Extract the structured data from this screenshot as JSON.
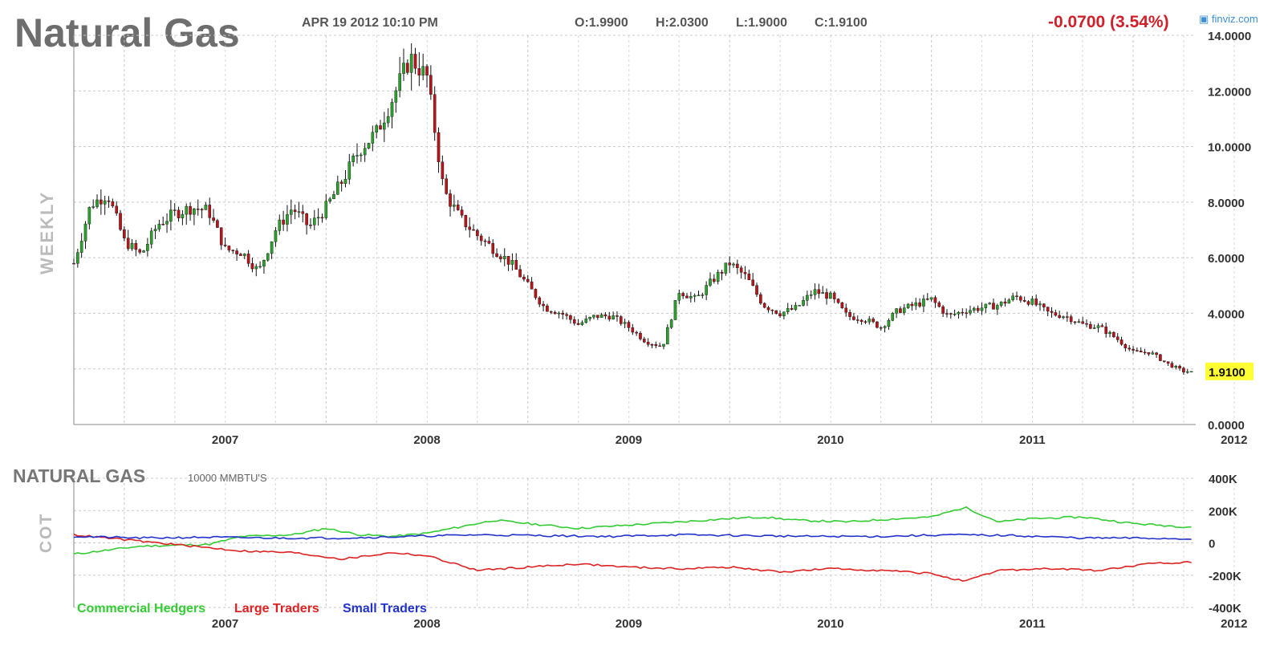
{
  "header": {
    "title": "Natural Gas",
    "datetime": "APR 19 2012 10:10 PM",
    "open": "O:1.9900",
    "high": "H:2.0300",
    "low": "L:1.9000",
    "close": "C:1.9100",
    "change": "-0.0700 (3.54%)",
    "brand": "finviz.com"
  },
  "colors": {
    "up_candle": "#2ca02c",
    "down_candle": "#b8141a",
    "candle_outline": "#000000",
    "grid": "#c8c8c8",
    "last_price_badge": "#ffff33",
    "change_text": "#d0202a",
    "commercial": "#33cc33",
    "large": "#dd2222",
    "small": "#2233cc"
  },
  "chart_data": [
    {
      "type": "candlestick",
      "timeframe_label": "WEEKLY",
      "x_tick_labels": [
        "2007",
        "2008",
        "2009",
        "2010",
        "2011",
        "2012"
      ],
      "y_tick_labels": [
        "0.0000",
        "2.0000",
        "4.0000",
        "6.0000",
        "8.0000",
        "10.0000",
        "12.0000",
        "14.0000"
      ],
      "ylim": [
        0,
        14
      ],
      "x_range": [
        "2006-10",
        "2012-04"
      ],
      "last_price": "1.9100",
      "grid": true,
      "close_path": [
        [
          "2006-10",
          5.8
        ],
        [
          "2006-11",
          7.9
        ],
        [
          "2006-12",
          8.3
        ],
        [
          "2007-01",
          6.6
        ],
        [
          "2007-02",
          6.1
        ],
        [
          "2007-03",
          7.2
        ],
        [
          "2007-04",
          7.6
        ],
        [
          "2007-05",
          7.8
        ],
        [
          "2007-06",
          7.7
        ],
        [
          "2007-07",
          6.3
        ],
        [
          "2007-08",
          6.2
        ],
        [
          "2007-09",
          5.5
        ],
        [
          "2007-10",
          7.0
        ],
        [
          "2007-11",
          7.8
        ],
        [
          "2007-12",
          7.1
        ],
        [
          "2008-01",
          7.8
        ],
        [
          "2008-02",
          8.8
        ],
        [
          "2008-03",
          9.9
        ],
        [
          "2008-04",
          10.5
        ],
        [
          "2008-05",
          11.8
        ],
        [
          "2008-06",
          13.2
        ],
        [
          "2008-07",
          12.5
        ],
        [
          "2008-08",
          8.4
        ],
        [
          "2008-09",
          7.4
        ],
        [
          "2008-10",
          6.8
        ],
        [
          "2008-11",
          6.3
        ],
        [
          "2008-12",
          5.8
        ],
        [
          "2009-01",
          5.0
        ],
        [
          "2009-02",
          4.2
        ],
        [
          "2009-03",
          4.0
        ],
        [
          "2009-04",
          3.6
        ],
        [
          "2009-05",
          3.9
        ],
        [
          "2009-06",
          3.9
        ],
        [
          "2009-07",
          3.5
        ],
        [
          "2009-08",
          3.0
        ],
        [
          "2009-09",
          2.8
        ],
        [
          "2009-10",
          4.8
        ],
        [
          "2009-11",
          4.5
        ],
        [
          "2009-12",
          5.2
        ],
        [
          "2010-01",
          5.8
        ],
        [
          "2010-02",
          5.3
        ],
        [
          "2010-03",
          4.3
        ],
        [
          "2010-04",
          4.0
        ],
        [
          "2010-05",
          4.2
        ],
        [
          "2010-06",
          4.8
        ],
        [
          "2010-07",
          4.6
        ],
        [
          "2010-08",
          3.9
        ],
        [
          "2010-09",
          3.8
        ],
        [
          "2010-10",
          3.5
        ],
        [
          "2010-11",
          4.1
        ],
        [
          "2010-12",
          4.3
        ],
        [
          "2011-01",
          4.5
        ],
        [
          "2011-02",
          3.9
        ],
        [
          "2011-03",
          4.1
        ],
        [
          "2011-04",
          4.2
        ],
        [
          "2011-05",
          4.3
        ],
        [
          "2011-06",
          4.6
        ],
        [
          "2011-07",
          4.4
        ],
        [
          "2011-08",
          4.0
        ],
        [
          "2011-09",
          3.9
        ],
        [
          "2011-10",
          3.6
        ],
        [
          "2011-11",
          3.5
        ],
        [
          "2011-12",
          3.1
        ],
        [
          "2012-01",
          2.6
        ],
        [
          "2012-02",
          2.6
        ],
        [
          "2012-03",
          2.2
        ],
        [
          "2012-04",
          1.91
        ]
      ]
    },
    {
      "type": "line",
      "title": "NATURAL GAS",
      "units_label": "10000 MMBTU'S",
      "side_label": "COT",
      "x_tick_labels": [
        "2007",
        "2008",
        "2009",
        "2010",
        "2011",
        "2012"
      ],
      "y_tick_labels": [
        "-400K",
        "-200K",
        "0",
        "200K",
        "400K"
      ],
      "ylim": [
        -400,
        400
      ],
      "x_range": [
        "2006-10",
        "2012-04"
      ],
      "grid": true,
      "series": [
        {
          "name": "Commercial Hedgers",
          "color": "#33cc33",
          "points": [
            [
              "2006-10",
              -70
            ],
            [
              "2007-02",
              -20
            ],
            [
              "2007-06",
              -10
            ],
            [
              "2007-08",
              40
            ],
            [
              "2007-11",
              50
            ],
            [
              "2008-01",
              90
            ],
            [
              "2008-03",
              50
            ],
            [
              "2008-05",
              40
            ],
            [
              "2008-07",
              60
            ],
            [
              "2008-09",
              100
            ],
            [
              "2008-11",
              140
            ],
            [
              "2009-01",
              120
            ],
            [
              "2009-04",
              90
            ],
            [
              "2009-07",
              110
            ],
            [
              "2009-10",
              130
            ],
            [
              "2010-01",
              150
            ],
            [
              "2010-03",
              160
            ],
            [
              "2010-05",
              140
            ],
            [
              "2010-08",
              130
            ],
            [
              "2010-11",
              150
            ],
            [
              "2011-01",
              160
            ],
            [
              "2011-03",
              220
            ],
            [
              "2011-05",
              130
            ],
            [
              "2011-07",
              150
            ],
            [
              "2011-10",
              160
            ],
            [
              "2012-01",
              120
            ],
            [
              "2012-04",
              100
            ]
          ]
        },
        {
          "name": "Large Traders",
          "color": "#dd2222",
          "points": [
            [
              "2006-10",
              50
            ],
            [
              "2007-01",
              20
            ],
            [
              "2007-04",
              -10
            ],
            [
              "2007-08",
              -50
            ],
            [
              "2007-11",
              -60
            ],
            [
              "2008-02",
              -100
            ],
            [
              "2008-05",
              -60
            ],
            [
              "2008-07",
              -80
            ],
            [
              "2008-10",
              -170
            ],
            [
              "2009-01",
              -150
            ],
            [
              "2009-04",
              -130
            ],
            [
              "2009-07",
              -150
            ],
            [
              "2009-10",
              -160
            ],
            [
              "2010-01",
              -150
            ],
            [
              "2010-04",
              -180
            ],
            [
              "2010-07",
              -160
            ],
            [
              "2010-10",
              -170
            ],
            [
              "2011-01",
              -190
            ],
            [
              "2011-03",
              -240
            ],
            [
              "2011-05",
              -170
            ],
            [
              "2011-08",
              -160
            ],
            [
              "2011-11",
              -170
            ],
            [
              "2012-02",
              -130
            ],
            [
              "2012-04",
              -120
            ]
          ]
        },
        {
          "name": "Small Traders",
          "color": "#2233cc",
          "points": [
            [
              "2006-10",
              40
            ],
            [
              "2007-02",
              30
            ],
            [
              "2007-06",
              35
            ],
            [
              "2007-10",
              30
            ],
            [
              "2008-02",
              30
            ],
            [
              "2008-06",
              40
            ],
            [
              "2008-10",
              50
            ],
            [
              "2009-02",
              45
            ],
            [
              "2009-06",
              40
            ],
            [
              "2009-10",
              50
            ],
            [
              "2010-02",
              45
            ],
            [
              "2010-06",
              40
            ],
            [
              "2010-10",
              40
            ],
            [
              "2011-02",
              50
            ],
            [
              "2011-06",
              45
            ],
            [
              "2011-10",
              30
            ],
            [
              "2012-01",
              30
            ],
            [
              "2012-04",
              25
            ]
          ]
        }
      ]
    }
  ]
}
